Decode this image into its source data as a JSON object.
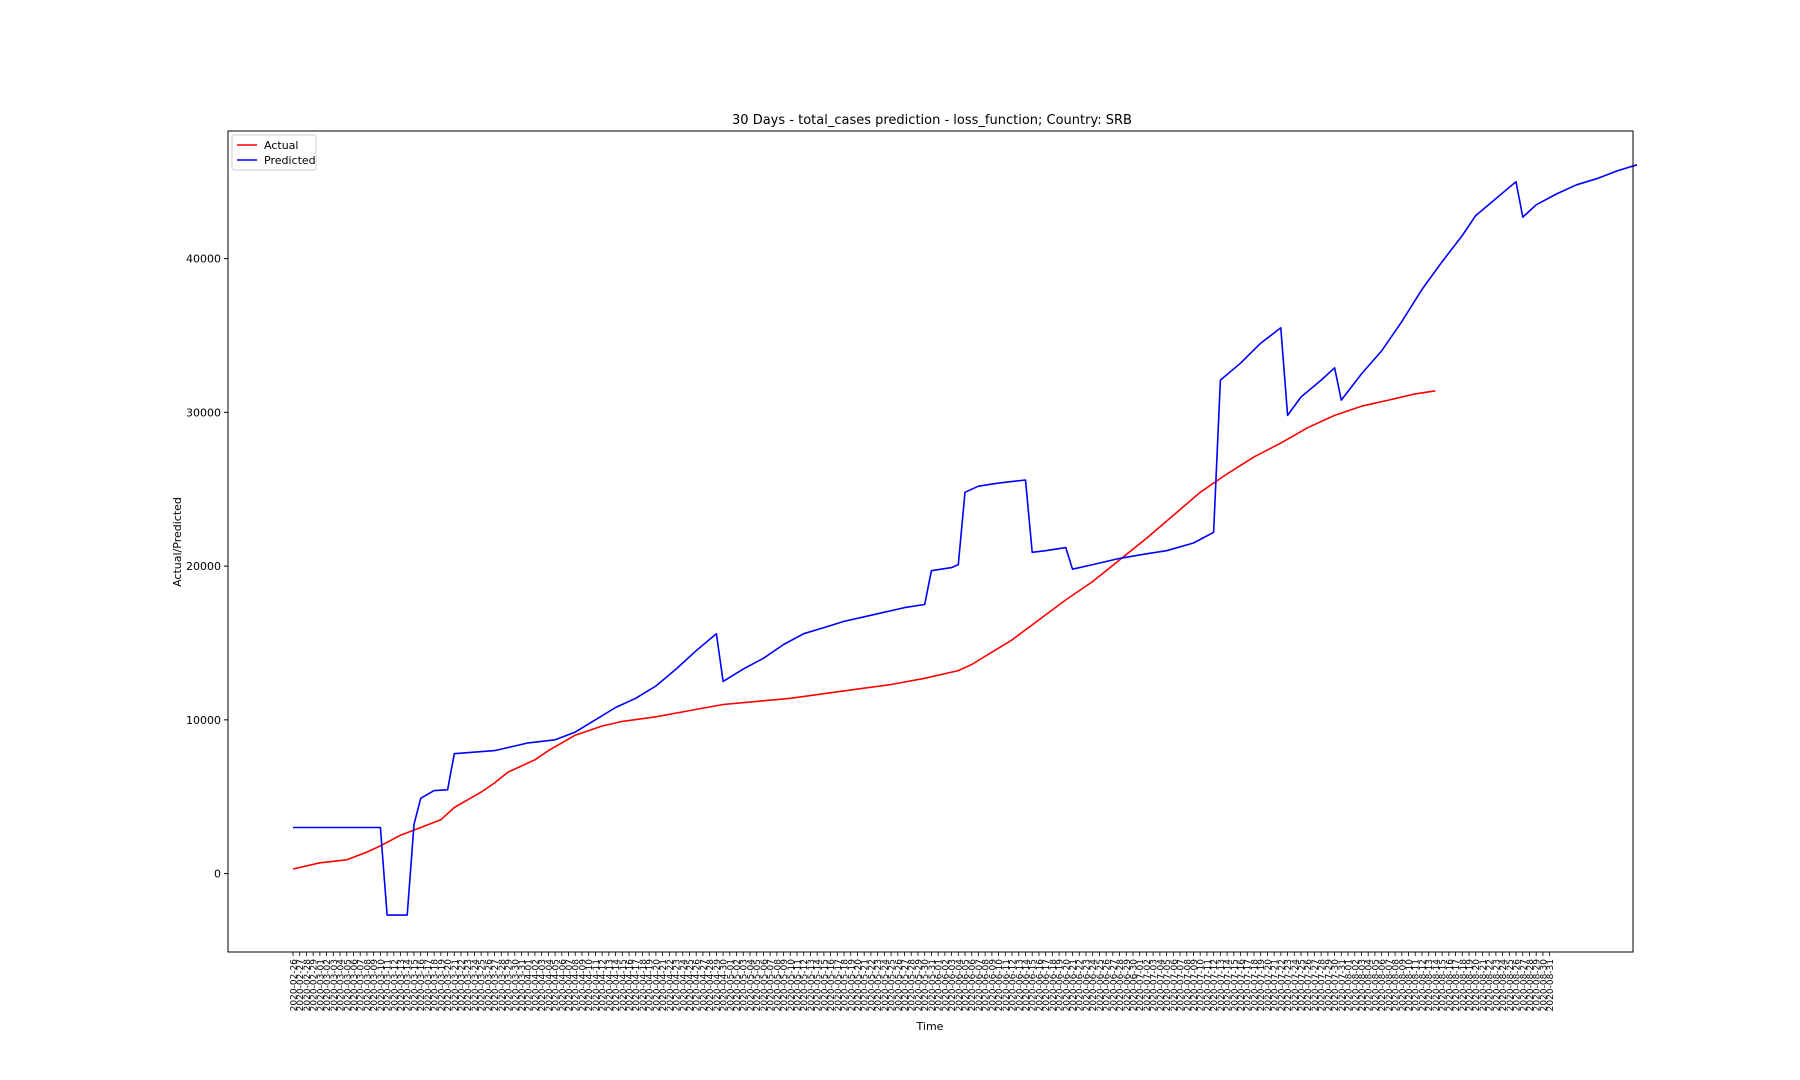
{
  "chart_data": {
    "type": "line",
    "title": "30 Days - total_cases prediction - loss_function; Country: SRB",
    "xlabel": "Time",
    "ylabel": "Actual/Predicted",
    "x_start": "2020-02-26",
    "x_end": "2020-08-31",
    "ylim": [
      -5100,
      48300
    ],
    "yticks": [
      0,
      10000,
      20000,
      30000,
      40000
    ],
    "grid": false,
    "legend": "upper left",
    "series": [
      {
        "name": "Actual",
        "color": "#ff0000",
        "points": [
          [
            "2020-02-26",
            300
          ],
          [
            "2020-03-01",
            700
          ],
          [
            "2020-03-05",
            900
          ],
          [
            "2020-03-08",
            1400
          ],
          [
            "2020-03-10",
            1800
          ],
          [
            "2020-03-13",
            2500
          ],
          [
            "2020-03-16",
            3000
          ],
          [
            "2020-03-19",
            3500
          ],
          [
            "2020-03-21",
            4300
          ],
          [
            "2020-03-23",
            4800
          ],
          [
            "2020-03-25",
            5300
          ],
          [
            "2020-03-27",
            5900
          ],
          [
            "2020-03-29",
            6600
          ],
          [
            "2020-03-31",
            7000
          ],
          [
            "2020-04-02",
            7400
          ],
          [
            "2020-04-04",
            8000
          ],
          [
            "2020-04-06",
            8500
          ],
          [
            "2020-04-08",
            9000
          ],
          [
            "2020-04-10",
            9300
          ],
          [
            "2020-04-12",
            9600
          ],
          [
            "2020-04-15",
            9900
          ],
          [
            "2020-04-20",
            10200
          ],
          [
            "2020-04-25",
            10600
          ],
          [
            "2020-04-30",
            11000
          ],
          [
            "2020-05-05",
            11200
          ],
          [
            "2020-05-10",
            11400
          ],
          [
            "2020-05-15",
            11700
          ],
          [
            "2020-05-20",
            12000
          ],
          [
            "2020-05-25",
            12300
          ],
          [
            "2020-05-30",
            12700
          ],
          [
            "2020-06-04",
            13200
          ],
          [
            "2020-06-06",
            13600
          ],
          [
            "2020-06-09",
            14400
          ],
          [
            "2020-06-12",
            15200
          ],
          [
            "2020-06-16",
            16500
          ],
          [
            "2020-06-20",
            17800
          ],
          [
            "2020-06-24",
            19000
          ],
          [
            "2020-06-28",
            20400
          ],
          [
            "2020-07-02",
            21800
          ],
          [
            "2020-07-06",
            23300
          ],
          [
            "2020-07-10",
            24800
          ],
          [
            "2020-07-14",
            26000
          ],
          [
            "2020-07-18",
            27100
          ],
          [
            "2020-07-22",
            28000
          ],
          [
            "2020-07-26",
            29000
          ],
          [
            "2020-07-30",
            29800
          ],
          [
            "2020-08-03",
            30400
          ],
          [
            "2020-08-07",
            30800
          ],
          [
            "2020-08-11",
            31200
          ],
          [
            "2020-08-14",
            31400
          ]
        ]
      },
      {
        "name": "Predicted",
        "color": "#0000ff",
        "points": [
          [
            "2020-02-26",
            3000
          ],
          [
            "2020-03-10",
            3000
          ],
          [
            "2020-03-11",
            -2700
          ],
          [
            "2020-03-14",
            -2700
          ],
          [
            "2020-03-15",
            3200
          ],
          [
            "2020-03-16",
            4900
          ],
          [
            "2020-03-18",
            5400
          ],
          [
            "2020-03-20",
            5450
          ],
          [
            "2020-03-21",
            7800
          ],
          [
            "2020-03-27",
            8000
          ],
          [
            "2020-03-30",
            8300
          ],
          [
            "2020-04-01",
            8500
          ],
          [
            "2020-04-05",
            8700
          ],
          [
            "2020-04-08",
            9200
          ],
          [
            "2020-04-11",
            10000
          ],
          [
            "2020-04-14",
            10800
          ],
          [
            "2020-04-17",
            11400
          ],
          [
            "2020-04-20",
            12200
          ],
          [
            "2020-04-23",
            13300
          ],
          [
            "2020-04-26",
            14500
          ],
          [
            "2020-04-29",
            15600
          ],
          [
            "2020-04-30",
            12500
          ],
          [
            "2020-05-03",
            13300
          ],
          [
            "2020-05-06",
            14000
          ],
          [
            "2020-05-09",
            14900
          ],
          [
            "2020-05-12",
            15600
          ],
          [
            "2020-05-15",
            16000
          ],
          [
            "2020-05-18",
            16400
          ],
          [
            "2020-05-21",
            16700
          ],
          [
            "2020-05-24",
            17000
          ],
          [
            "2020-05-27",
            17300
          ],
          [
            "2020-05-30",
            17500
          ],
          [
            "2020-05-31",
            19700
          ],
          [
            "2020-06-03",
            19900
          ],
          [
            "2020-06-04",
            20100
          ],
          [
            "2020-06-05",
            24800
          ],
          [
            "2020-06-07",
            25200
          ],
          [
            "2020-06-10",
            25400
          ],
          [
            "2020-06-14",
            25600
          ],
          [
            "2020-06-15",
            20900
          ],
          [
            "2020-06-17",
            21000
          ],
          [
            "2020-06-20",
            21200
          ],
          [
            "2020-06-21",
            19800
          ],
          [
            "2020-06-24",
            20100
          ],
          [
            "2020-06-28",
            20500
          ],
          [
            "2020-07-02",
            20800
          ],
          [
            "2020-07-05",
            21000
          ],
          [
            "2020-07-09",
            21500
          ],
          [
            "2020-07-12",
            22200
          ],
          [
            "2020-07-13",
            32100
          ],
          [
            "2020-07-16",
            33200
          ],
          [
            "2020-07-19",
            34500
          ],
          [
            "2020-07-22",
            35500
          ],
          [
            "2020-07-23",
            29800
          ],
          [
            "2020-07-25",
            31000
          ],
          [
            "2020-07-28",
            32100
          ],
          [
            "2020-07-30",
            32900
          ],
          [
            "2020-07-31",
            30800
          ],
          [
            "2020-08-03",
            32500
          ],
          [
            "2020-08-06",
            34000
          ],
          [
            "2020-08-09",
            35900
          ],
          [
            "2020-08-12",
            38000
          ],
          [
            "2020-08-15",
            39800
          ],
          [
            "2020-08-18",
            41500
          ],
          [
            "2020-08-20",
            42800
          ],
          [
            "2020-08-23",
            43900
          ],
          [
            "2020-08-26",
            45000
          ],
          [
            "2020-08-27",
            42700
          ],
          [
            "2020-08-29",
            43500
          ],
          [
            "2020-09-01",
            44200
          ],
          [
            "2020-09-04",
            44800
          ],
          [
            "2020-09-07",
            45200
          ],
          [
            "2020-09-10",
            45700
          ],
          [
            "2020-09-13",
            46100
          ]
        ]
      }
    ]
  }
}
